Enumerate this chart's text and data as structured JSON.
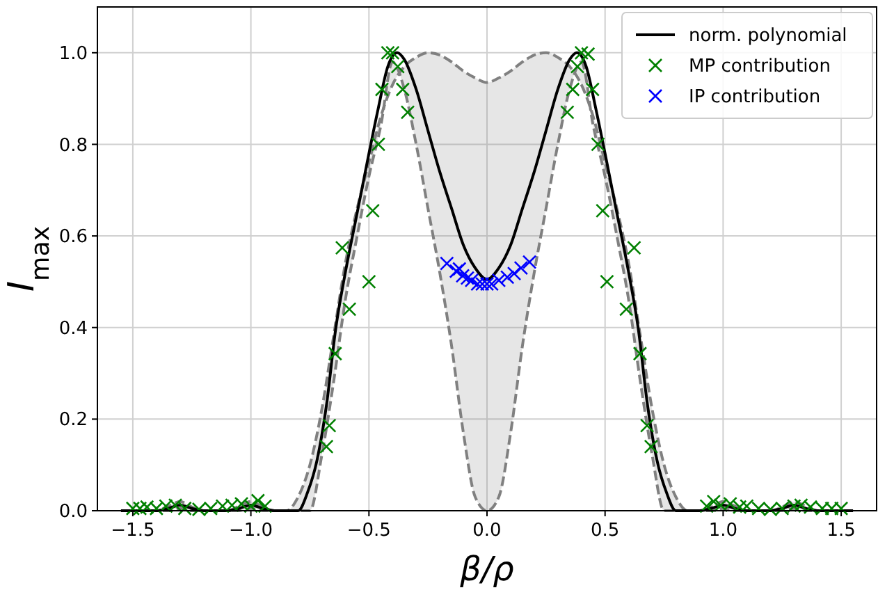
{
  "chart_data": {
    "type": "line",
    "xlabel": "β/ρ",
    "ylabel": "I$_{max}$",
    "xlim": [
      -1.65,
      1.65
    ],
    "ylim": [
      0,
      1.1
    ],
    "xticks": [
      {
        "value": -1.5,
        "label": "−1.5"
      },
      {
        "value": -1.0,
        "label": "−1.0"
      },
      {
        "value": -0.5,
        "label": "−0.5"
      },
      {
        "value": 0,
        "label": "0.0"
      },
      {
        "value": 0.5,
        "label": "0.5"
      },
      {
        "value": 1.0,
        "label": "1.0"
      },
      {
        "value": 1.5,
        "label": "1.5"
      }
    ],
    "yticks": [
      {
        "value": 0,
        "label": "0.0"
      },
      {
        "value": 0.2,
        "label": "0.2"
      },
      {
        "value": 0.4,
        "label": "0.4"
      },
      {
        "value": 0.6,
        "label": "0.6"
      },
      {
        "value": 0.8,
        "label": "0.8"
      },
      {
        "value": 1.0,
        "label": "1.0"
      }
    ],
    "grid": true,
    "legend": "top right",
    "series": [
      {
        "color": "#808080",
        "line_style": "dashed",
        "x": [
          -1.55,
          -1.5,
          -1.4,
          -1.35,
          -1.3,
          -1.25,
          -1.2,
          -1.1,
          -1.05,
          -1.0,
          -0.95,
          -0.9,
          -0.85,
          -0.8,
          -0.75,
          -0.7,
          -0.65,
          -0.6,
          -0.55,
          -0.5,
          -0.45,
          -0.4,
          -0.35,
          -0.3,
          -0.25,
          -0.2,
          -0.15,
          -0.1,
          -0.05,
          0,
          0.05,
          0.1,
          0.15,
          0.2,
          0.25,
          0.3,
          0.35,
          0.4,
          0.45,
          0.5,
          0.55,
          0.6,
          0.65,
          0.7,
          0.75,
          0.8,
          0.85,
          0.9,
          0.95,
          1.0,
          1.05,
          1.1,
          1.2,
          1.25,
          1.3,
          1.35,
          1.4,
          1.5,
          1.55
        ],
        "values": [
          0,
          0,
          0,
          0.01,
          0.02,
          0.008,
          0,
          0,
          0.01,
          0.02,
          0.008,
          0,
          0,
          0.03,
          0.1,
          0.22,
          0.38,
          0.54,
          0.66,
          0.76,
          0.86,
          0.93,
          0.97,
          0.99,
          1.0,
          0.995,
          0.98,
          0.96,
          0.945,
          0.935,
          0.945,
          0.96,
          0.98,
          0.995,
          1.0,
          0.99,
          0.97,
          0.93,
          0.86,
          0.76,
          0.66,
          0.54,
          0.38,
          0.22,
          0.1,
          0.03,
          0,
          0,
          0.008,
          0.02,
          0.01,
          0,
          0,
          0.008,
          0.02,
          0.01,
          0,
          0,
          0
        ],
        "upper": [
          0,
          0,
          0,
          0.01,
          0.02,
          0.008,
          0,
          0,
          0.01,
          0.02,
          0.008,
          0,
          0,
          0.03,
          0.1,
          0.22,
          0.38,
          0.54,
          0.66,
          0.76,
          0.86,
          0.93,
          0.97,
          0.99,
          1.0,
          0.995,
          0.98,
          0.96,
          0.945,
          0.935,
          0.945,
          0.96,
          0.98,
          0.995,
          1.0,
          0.99,
          0.97,
          0.93,
          0.86,
          0.76,
          0.66,
          0.54,
          0.38,
          0.22,
          0.1,
          0.03,
          0,
          0,
          0.008,
          0.02,
          0.01,
          0,
          0,
          0.008,
          0.02,
          0.01,
          0,
          0,
          0
        ],
        "lower": [
          0,
          0,
          0,
          0,
          0.005,
          0,
          0,
          0,
          0,
          0.005,
          0,
          0,
          0,
          0,
          0,
          0.12,
          0.28,
          0.46,
          0.6,
          0.73,
          0.84,
          0.98,
          0.92,
          0.8,
          0.66,
          0.52,
          0.36,
          0.17,
          0.03,
          0,
          0.03,
          0.17,
          0.36,
          0.52,
          0.66,
          0.8,
          0.92,
          0.98,
          0.84,
          0.73,
          0.6,
          0.46,
          0.28,
          0.12,
          0,
          0,
          0,
          0,
          0,
          0.005,
          0,
          0,
          0,
          0,
          0.005,
          0,
          0,
          0,
          0
        ]
      },
      {
        "color": "#808080",
        "line_style": "dashed",
        "x": [
          -1.55,
          -1.5,
          -1.4,
          -1.35,
          -1.3,
          -1.25,
          -1.2,
          -1.1,
          -1.05,
          -1.0,
          -0.95,
          -0.9,
          -0.85,
          -0.8,
          -0.75,
          -0.7,
          -0.65,
          -0.6,
          -0.55,
          -0.5,
          -0.45,
          -0.4,
          -0.35,
          -0.3,
          -0.25,
          -0.2,
          -0.15,
          -0.1,
          -0.05,
          0,
          0.05,
          0.1,
          0.15,
          0.2,
          0.25,
          0.3,
          0.35,
          0.4,
          0.45,
          0.5,
          0.55,
          0.6,
          0.65,
          0.7,
          0.75,
          0.8,
          0.85,
          0.9,
          0.95,
          1.0,
          1.05,
          1.1,
          1.2,
          1.25,
          1.3,
          1.35,
          1.4,
          1.5,
          1.55
        ],
        "values": [
          0,
          0,
          0,
          0,
          0.005,
          0,
          0,
          0,
          0,
          0.005,
          0,
          0,
          0,
          0,
          0,
          0.12,
          0.28,
          0.46,
          0.6,
          0.73,
          0.84,
          0.98,
          0.92,
          0.8,
          0.66,
          0.52,
          0.36,
          0.17,
          0.03,
          0,
          0.03,
          0.17,
          0.36,
          0.52,
          0.66,
          0.8,
          0.92,
          0.98,
          0.84,
          0.73,
          0.6,
          0.46,
          0.28,
          0.12,
          0,
          0,
          0,
          0,
          0,
          0.005,
          0,
          0,
          0,
          0,
          0.005,
          0,
          0,
          0,
          0
        ]
      },
      {
        "name": "norm. polynomial",
        "color": "#000000",
        "x": [
          -1.55,
          -1.5,
          -1.4,
          -1.35,
          -1.3,
          -1.25,
          -1.2,
          -1.1,
          -1.05,
          -1.0,
          -0.95,
          -0.9,
          -0.85,
          -0.8,
          -0.76,
          -0.72,
          -0.68,
          -0.64,
          -0.6,
          -0.55,
          -0.5,
          -0.46,
          -0.42,
          -0.38,
          -0.35,
          -0.3,
          -0.25,
          -0.2,
          -0.15,
          -0.1,
          -0.05,
          0,
          0.05,
          0.1,
          0.15,
          0.2,
          0.25,
          0.3,
          0.35,
          0.38,
          0.42,
          0.46,
          0.5,
          0.55,
          0.6,
          0.64,
          0.68,
          0.72,
          0.76,
          0.8,
          0.85,
          0.9,
          0.95,
          1.0,
          1.05,
          1.1,
          1.2,
          1.25,
          1.3,
          1.35,
          1.4,
          1.5,
          1.55
        ],
        "values": [
          0,
          0,
          0,
          0.005,
          0.012,
          0.005,
          0,
          0,
          0.005,
          0.012,
          0.005,
          0,
          0,
          0,
          0.04,
          0.11,
          0.23,
          0.4,
          0.52,
          0.65,
          0.78,
          0.88,
          0.97,
          1.0,
          0.985,
          0.92,
          0.83,
          0.74,
          0.66,
          0.58,
          0.53,
          0.505,
          0.53,
          0.58,
          0.66,
          0.74,
          0.83,
          0.92,
          0.985,
          1.0,
          0.97,
          0.88,
          0.78,
          0.65,
          0.52,
          0.4,
          0.23,
          0.11,
          0.04,
          0,
          0,
          0,
          0.005,
          0.012,
          0.005,
          0,
          0,
          0.005,
          0.012,
          0.005,
          0,
          0,
          0
        ]
      },
      {
        "name": "MP contribution",
        "type": "scatter",
        "marker": "cross",
        "color": "#008000",
        "x": [
          -1.5,
          -1.47,
          -1.44,
          -1.4,
          -1.36,
          -1.32,
          -1.28,
          -1.22,
          -1.17,
          -1.12,
          -1.08,
          -1.04,
          -1.0,
          -0.97,
          -0.94,
          -0.42,
          -0.4,
          -0.378,
          -0.445,
          -0.357,
          -0.336,
          -0.46,
          -0.484,
          -0.613,
          -0.5,
          -0.583,
          -0.643,
          -0.668,
          -0.68,
          0.4,
          0.428,
          0.383,
          0.363,
          0.447,
          0.34,
          0.47,
          0.49,
          0.623,
          0.508,
          0.59,
          0.648,
          0.678,
          0.695,
          0.93,
          0.96,
          0.99,
          1.03,
          1.07,
          1.1,
          1.15,
          1.2,
          1.25,
          1.3,
          1.33,
          1.37,
          1.42,
          1.46,
          1.5
        ],
        "values": [
          0.005,
          0.005,
          0.008,
          0.005,
          0.01,
          0.012,
          0.005,
          0.003,
          0.005,
          0.01,
          0.012,
          0.015,
          0.01,
          0.022,
          0.01,
          1.0,
          1.0,
          0.97,
          0.92,
          0.92,
          0.87,
          0.8,
          0.655,
          0.574,
          0.5,
          0.44,
          0.343,
          0.186,
          0.14,
          1.0,
          0.997,
          0.97,
          0.92,
          0.92,
          0.87,
          0.8,
          0.655,
          0.574,
          0.5,
          0.44,
          0.343,
          0.186,
          0.14,
          0.01,
          0.02,
          0.012,
          0.015,
          0.008,
          0.01,
          0.005,
          0.003,
          0.005,
          0.01,
          0.012,
          0.008,
          0.005,
          0.005,
          0.005
        ]
      },
      {
        "name": "IP contribution",
        "type": "scatter",
        "marker": "cross",
        "color": "#0000ff",
        "x": [
          -0.17,
          -0.13,
          -0.117,
          -0.103,
          -0.083,
          -0.065,
          -0.04,
          -0.02,
          0,
          0.02,
          0.05,
          0.086,
          0.115,
          0.144,
          0.18
        ],
        "values": [
          0.54,
          0.523,
          0.528,
          0.513,
          0.508,
          0.503,
          0.495,
          0.495,
          0.495,
          0.495,
          0.503,
          0.51,
          0.518,
          0.53,
          0.543
        ]
      }
    ]
  }
}
